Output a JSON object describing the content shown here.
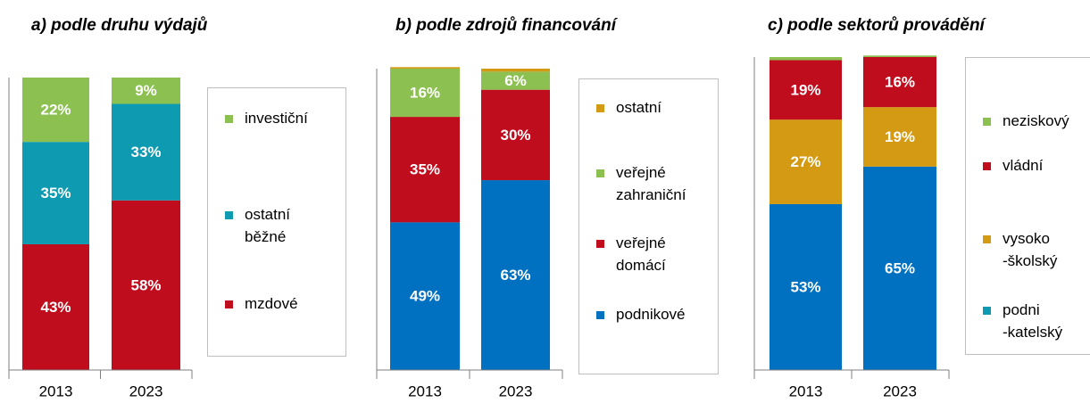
{
  "chart_data": [
    {
      "type": "stacked_bar",
      "title": "a) podle druhu výdajů",
      "categories": [
        "2013",
        "2023"
      ],
      "ylim": [
        0,
        100
      ],
      "series": [
        {
          "name": "mzdové",
          "color": "#c00d1e",
          "values": [
            43,
            58
          ],
          "value_labels": [
            "43%",
            "58%"
          ]
        },
        {
          "name": "ostatní\nběžné",
          "color": "#0e9ab0",
          "values": [
            35,
            33
          ],
          "value_labels": [
            "35%",
            "33%"
          ]
        },
        {
          "name": "investiční",
          "color": "#8cc152",
          "values": [
            22,
            9
          ],
          "value_labels": [
            "22%",
            "9%"
          ]
        }
      ]
    },
    {
      "type": "stacked_bar",
      "title": "b) podle zdrojů financování",
      "categories": [
        "2013",
        "2023"
      ],
      "ylim": [
        0,
        100
      ],
      "series": [
        {
          "name": "podnikové",
          "color": "#0070c0",
          "values": [
            49,
            63
          ],
          "value_labels": [
            "49%",
            "63%"
          ]
        },
        {
          "name": "veřejné\ndomácí",
          "color": "#c00d1e",
          "values": [
            35,
            30
          ],
          "value_labels": [
            "35%",
            "30%"
          ]
        },
        {
          "name": "veřejné\nzahraniční",
          "color": "#8cc152",
          "values": [
            16,
            6
          ],
          "value_labels": [
            "16%",
            "6%"
          ]
        },
        {
          "name": "ostatní",
          "color": "#d49a14",
          "values": [
            0.5,
            1
          ]
        }
      ]
    },
    {
      "type": "stacked_bar",
      "title": "c) podle sektorů provádění",
      "categories": [
        "2013",
        "2023"
      ],
      "ylim": [
        0,
        100
      ],
      "series": [
        {
          "name": "podni\n-katelský",
          "color": "#0070c0",
          "legend_color": "#0e9ab0",
          "values": [
            53,
            65
          ],
          "value_labels": [
            "53%",
            "65%"
          ]
        },
        {
          "name": "vysoko\n-školský",
          "color": "#d49a14",
          "values": [
            27,
            19
          ],
          "value_labels": [
            "27%",
            "19%"
          ]
        },
        {
          "name": "vládní",
          "color": "#c00d1e",
          "values": [
            19,
            16
          ],
          "value_labels": [
            "19%",
            "16%"
          ]
        },
        {
          "name": "neziskový",
          "color": "#8cc152",
          "values": [
            1,
            0.5
          ]
        }
      ]
    }
  ]
}
